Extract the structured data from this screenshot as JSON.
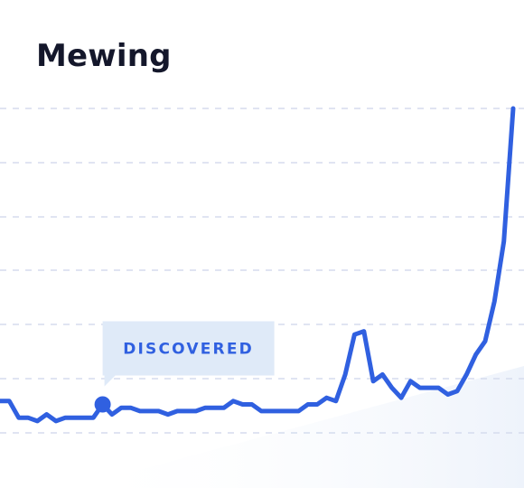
{
  "chart_data": {
    "type": "line",
    "title": "Mewing",
    "xlabel": "",
    "ylabel": "",
    "ylim": [
      0,
      100
    ],
    "grid": true,
    "series": [
      {
        "values": [
          12,
          12,
          7,
          7,
          6,
          8,
          6,
          7,
          7,
          7,
          7,
          11,
          8,
          10,
          10,
          9,
          9,
          9,
          8,
          9,
          9,
          9,
          10,
          10,
          10,
          12,
          11,
          11,
          9,
          9,
          9,
          9,
          9,
          11,
          11,
          13,
          12,
          20,
          32,
          33,
          18,
          20,
          16,
          13,
          18,
          16,
          16,
          16,
          14,
          15,
          20,
          26,
          30,
          42,
          60,
          100
        ]
      }
    ],
    "annotation": {
      "label": "DISCOVERED",
      "index": 11
    },
    "colors": {
      "line": "#3060e0",
      "grid": "#d5dcee",
      "callout_bg": "#dfeaf8",
      "callout_text": "#3060e0",
      "area": "#eef3fb"
    }
  }
}
